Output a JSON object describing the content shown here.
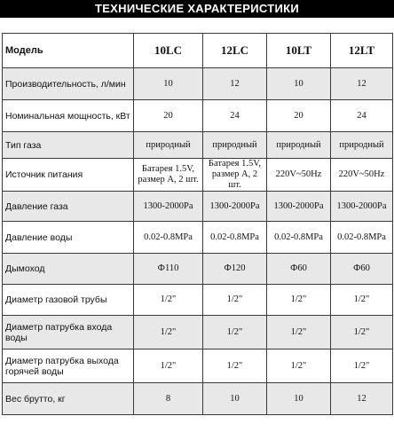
{
  "title": "ТЕХНИЧЕСКИЕ ХАРАКТЕРИСТИКИ",
  "header": {
    "label": "Модель",
    "models": [
      "10LC",
      "12LC",
      "10LT",
      "12LT"
    ]
  },
  "rows": [
    {
      "label": "Производительность, л/мин",
      "values": [
        "10",
        "12",
        "10",
        "12"
      ]
    },
    {
      "label": "Номинальная мощность, кВт",
      "values": [
        "20",
        "24",
        "20",
        "24"
      ]
    },
    {
      "label": "Тип газа",
      "values": [
        "природный",
        "природный",
        "природный",
        "природный"
      ]
    },
    {
      "label": "Источник питания",
      "values": [
        "Батарея 1.5V, размер А, 2 шт.",
        "Батарея 1.5V, размер А, 2 шт.",
        "220V~50Hz",
        "220V~50Hz"
      ]
    },
    {
      "label": "Давление газа",
      "values": [
        "1300-2000Pa",
        "1300-2000Pa",
        "1300-2000Pa",
        "1300-2000Pa"
      ]
    },
    {
      "label": "Давление воды",
      "values": [
        "0.02-0.8MPa",
        "0.02-0.8MPa",
        "0.02-0.8MPa",
        "0.02-0.8MPa"
      ]
    },
    {
      "label": "Дымоход",
      "values": [
        "Ф110",
        "Ф120",
        "Ф60",
        "Ф60"
      ]
    },
    {
      "label": "Диаметр газовой трубы",
      "values": [
        "1/2\"",
        "1/2\"",
        "1/2\"",
        "1/2\""
      ]
    },
    {
      "label": "Диаметр патрубка входа воды",
      "values": [
        "1/2\"",
        "1/2\"",
        "1/2\"",
        "1/2\""
      ]
    },
    {
      "label": "Диаметр патрубка выхода горячей воды",
      "values": [
        "1/2\"",
        "1/2\"",
        "1/2\"",
        "1/2\""
      ]
    },
    {
      "label": "Вес брутто, кг",
      "values": [
        "8",
        "10",
        "10",
        "12"
      ]
    }
  ]
}
